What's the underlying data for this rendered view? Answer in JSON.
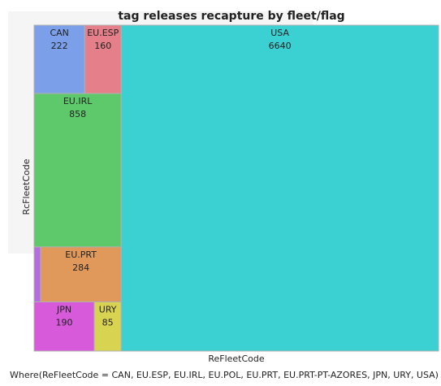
{
  "chart_data": {
    "type": "treemap",
    "title": "tag releases recapture by fleet/flag",
    "x_label": "ReFleetCode",
    "y_label": "RcFleetCode",
    "footnote": "Where(ReFleetCode = CAN, EU.ESP, EU.IRL, EU.POL, EU.PRT, EU.PRT-PT-AZORES, JPN, URY, USA)",
    "categories": [
      "CAN",
      "EU.ESP",
      "EU.IRL",
      null,
      "EU.PRT",
      "JPN",
      "URY",
      "USA"
    ],
    "values": [
      222,
      160,
      858,
      23,
      284,
      190,
      85,
      6640
    ],
    "colors": [
      "#7b9fe8",
      "#e57f8a",
      "#5ec96a",
      "#b46ee0",
      "#e0995a",
      "#d65ad9",
      "#d9d352",
      "#3bd1d2"
    ]
  }
}
